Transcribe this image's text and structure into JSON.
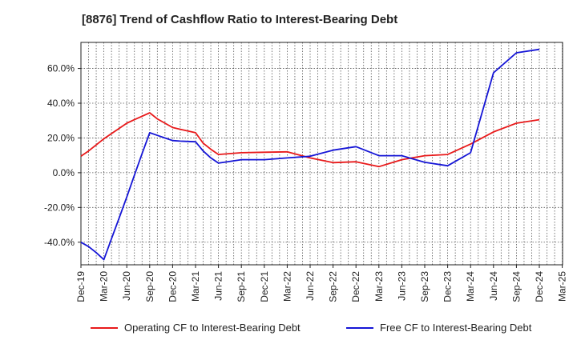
{
  "chart_data": {
    "type": "line",
    "title": "[8876]  Trend of Cashflow Ratio to Interest-Bearing Debt",
    "xlabel": "",
    "ylabel": "",
    "x_tick_labels": [
      "Dec-19",
      "Mar-20",
      "Jun-20",
      "Sep-20",
      "Dec-20",
      "Mar-21",
      "Jun-21",
      "Sep-21",
      "Dec-21",
      "Mar-22",
      "Jun-22",
      "Sep-22",
      "Dec-22",
      "Mar-23",
      "Jun-23",
      "Sep-23",
      "Dec-23",
      "Mar-24",
      "Jun-24",
      "Sep-24",
      "Dec-24",
      "Mar-25"
    ],
    "y_ticks": [
      -40,
      -20,
      0,
      20,
      40,
      60
    ],
    "y_tick_labels": [
      "-40.0%",
      "-20.0%",
      "0.0%",
      "20.0%",
      "40.0%",
      "60.0%"
    ],
    "ylim": [
      -53,
      75
    ],
    "grid": true,
    "legend_position": "bottom",
    "series": [
      {
        "name": "Operating CF to Interest-Bearing Debt",
        "color": "#e8191a",
        "x": [
          "Dec-19",
          "Jan-20",
          "Feb-20",
          "Mar-20",
          "Apr-20",
          "May-20",
          "Jun-20",
          "Jul-20",
          "Aug-20",
          "Sep-20",
          "Oct-20",
          "Nov-20",
          "Dec-20",
          "Jan-21",
          "Feb-21",
          "Mar-21",
          "Apr-21",
          "May-21",
          "Jun-21",
          "Sep-21",
          "Dec-21",
          "Mar-22",
          "Jun-22",
          "Sep-22",
          "Dec-22",
          "Mar-23",
          "Jun-23",
          "Sep-23",
          "Dec-23",
          "Mar-24",
          "Jun-24",
          "Sep-24",
          "Dec-24"
        ],
        "values": [
          9.5,
          12.5,
          16.0,
          19.5,
          22.5,
          25.5,
          28.5,
          30.5,
          32.5,
          34.5,
          31.0,
          28.5,
          26.0,
          25.0,
          24.0,
          23.0,
          17.0,
          13.5,
          10.5,
          11.5,
          11.8,
          12.0,
          8.5,
          5.8,
          6.3,
          3.5,
          7.5,
          9.8,
          10.5,
          16.5,
          23.5,
          28.5,
          30.5
        ]
      },
      {
        "name": "Free CF to Interest-Bearing Debt",
        "color": "#1515d6",
        "x": [
          "Dec-19",
          "Jan-20",
          "Feb-20",
          "Mar-20",
          "Apr-20",
          "May-20",
          "Jun-20",
          "Jul-20",
          "Aug-20",
          "Sep-20",
          "Oct-20",
          "Nov-20",
          "Dec-20",
          "Jan-21",
          "Feb-21",
          "Mar-21",
          "Apr-21",
          "May-21",
          "Jun-21",
          "Sep-21",
          "Dec-21",
          "Mar-22",
          "Jun-22",
          "Sep-22",
          "Dec-22",
          "Mar-23",
          "Jun-23",
          "Sep-23",
          "Dec-23",
          "Mar-24",
          "Jun-24",
          "Sep-24",
          "Dec-24"
        ],
        "values": [
          -40.0,
          -42.5,
          -46.0,
          -50.0,
          -38.0,
          -26.0,
          -14.0,
          -1.5,
          11.0,
          23.0,
          21.5,
          20.0,
          18.5,
          18.2,
          18.0,
          17.8,
          12.5,
          8.5,
          5.5,
          7.5,
          7.5,
          8.5,
          9.5,
          13.0,
          15.0,
          9.8,
          9.8,
          6.0,
          4.0,
          11.5,
          57.5,
          69.0,
          71.0
        ]
      }
    ]
  }
}
